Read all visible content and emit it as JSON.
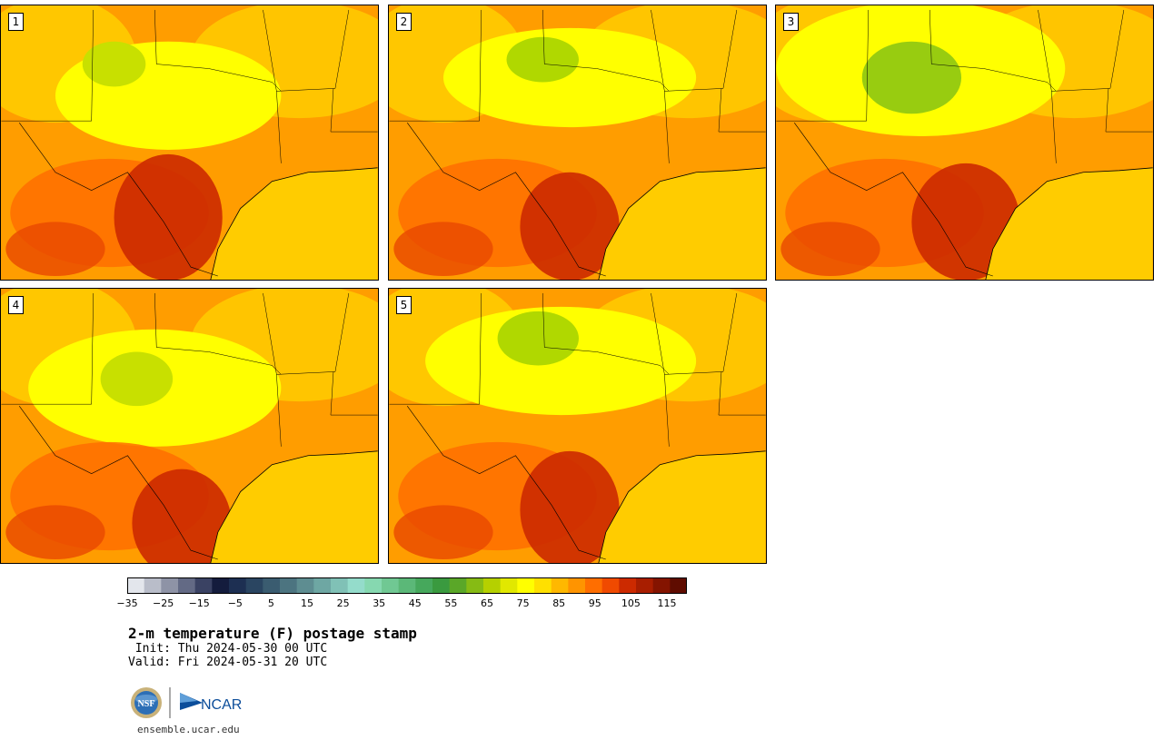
{
  "title": "2-m temperature (F) postage stamp",
  "init_line": " Init: Thu 2024-05-30 00 UTC",
  "valid_line": "Valid: Fri 2024-05-31 20 UTC",
  "site": "ensemble.ucar.edu",
  "logos": {
    "nsf": "NSF",
    "ncar": "NCAR"
  },
  "panels": [
    {
      "label": "1"
    },
    {
      "label": "2"
    },
    {
      "label": "3"
    },
    {
      "label": "4"
    },
    {
      "label": "5"
    }
  ],
  "colorbar": {
    "colors": [
      "#e3e6ec",
      "#b9bdc9",
      "#8e93a6",
      "#636a85",
      "#3a4263",
      "#141c3d",
      "#1d2f52",
      "#2a4561",
      "#3a5c70",
      "#4c7480",
      "#5e8d91",
      "#6ea7a3",
      "#80c1b6",
      "#94dccb",
      "#86d8b0",
      "#70c893",
      "#5bb878",
      "#46a85c",
      "#3a9a3f",
      "#5aa728",
      "#86bb14",
      "#b5d000",
      "#e1e800",
      "#ffff00",
      "#ffe000",
      "#ffb800",
      "#ff9400",
      "#ff6e00",
      "#f04a00",
      "#cc2a00",
      "#a81e00",
      "#841400",
      "#5f0c00"
    ],
    "tick_labels": [
      "−35",
      "−25",
      "−15",
      "−5",
      "5",
      "15",
      "25",
      "35",
      "45",
      "55",
      "65",
      "75",
      "85",
      "95",
      "105",
      "115"
    ]
  }
}
